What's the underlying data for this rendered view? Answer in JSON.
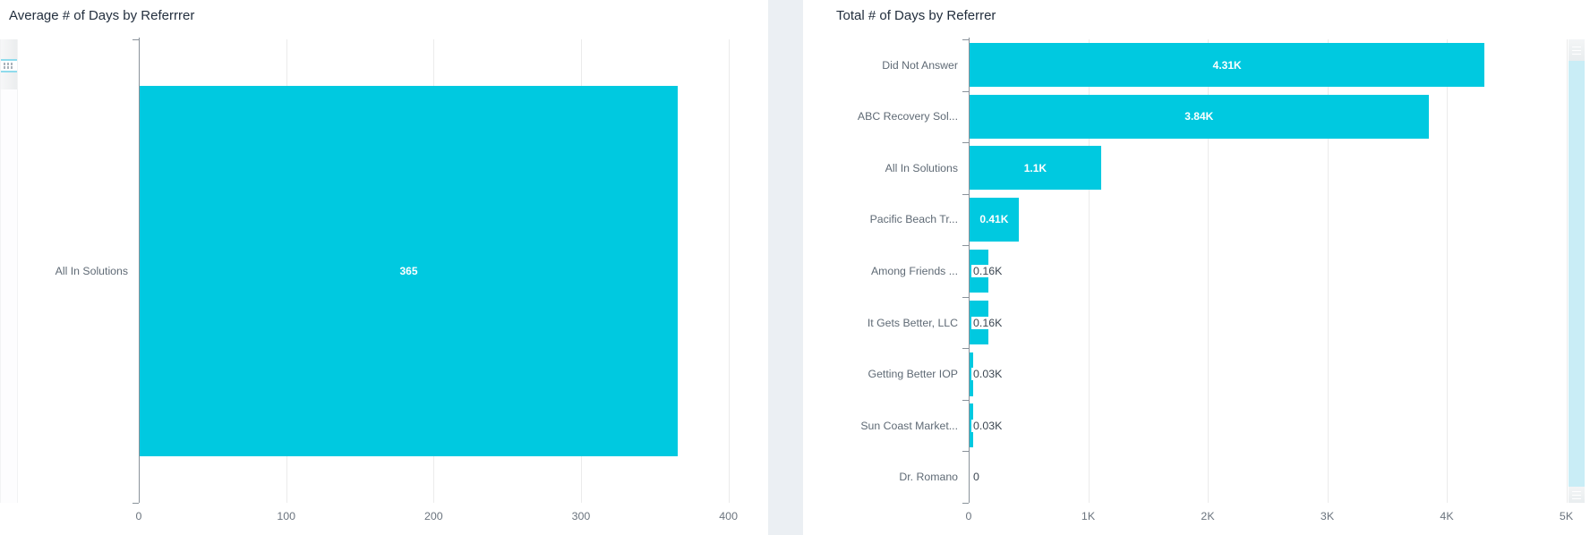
{
  "colors": {
    "bar": "#00c9e0",
    "title_text": "#232f3e",
    "axis_line": "#8a929a",
    "gridline": "#ebebeb",
    "category_label": "#5f6a75",
    "tick_label": "#6b747e",
    "value_label_inside": "#ffffff",
    "value_label_outside": "#3b4651",
    "panel_gutter": "#ebeff3",
    "scrollbar_fill": "#c9edf6",
    "scrollbar_handle_accent": "#8fdbec"
  },
  "chart_data": [
    {
      "type": "bar",
      "orientation": "horizontal",
      "title": "Average # of Days by Referrrer",
      "categories": [
        "All In Solutions"
      ],
      "values": [
        365
      ],
      "value_labels": [
        "365"
      ],
      "xlabel": "",
      "ylabel": "",
      "xlim": [
        0,
        406
      ],
      "x_tick_values": [
        0,
        100,
        200,
        300,
        400
      ],
      "x_tick_labels": [
        "0",
        "100",
        "200",
        "300",
        "400"
      ],
      "grid": true,
      "legend": "none",
      "bar_color": "#00c9e0"
    },
    {
      "type": "bar",
      "orientation": "horizontal",
      "title": "Total # of Days by Referrer",
      "categories": [
        "Did Not Answer",
        "ABC Recovery Sol...",
        "All In Solutions",
        "Pacific Beach Tr...",
        "Among Friends ...",
        "It Gets Better, LLC",
        "Getting Better IOP",
        "Sun Coast Market...",
        "Dr. Romano"
      ],
      "values": [
        4310,
        3840,
        1100,
        410,
        160,
        160,
        30,
        30,
        0
      ],
      "value_labels": [
        "4.31K",
        "3.84K",
        "1.1K",
        "0.41K",
        "0.16K",
        "0.16K",
        "0.03K",
        "0.03K",
        "0"
      ],
      "xlabel": "",
      "ylabel": "",
      "xlim": [
        0,
        5010
      ],
      "x_tick_values": [
        0,
        1000,
        2000,
        3000,
        4000,
        5000
      ],
      "x_tick_labels": [
        "0",
        "1K",
        "2K",
        "3K",
        "4K",
        "5K"
      ],
      "grid": true,
      "legend": "none",
      "bar_color": "#00c9e0"
    }
  ]
}
